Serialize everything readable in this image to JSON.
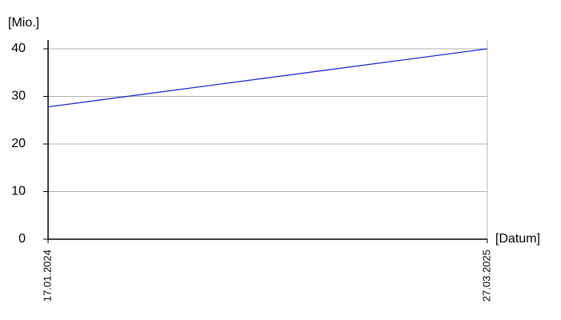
{
  "chart_data": {
    "type": "line",
    "y_label": "[Mio.]",
    "x_label": "[Datum]",
    "x": [
      "17.01.2024",
      "27.03.2025"
    ],
    "series": [
      {
        "color": "#1a2ccc",
        "values": [
          27.8,
          40
        ]
      }
    ],
    "ylim": [
      0,
      40
    ],
    "yticks": [
      0,
      10,
      20,
      30,
      40
    ],
    "grid": true
  }
}
